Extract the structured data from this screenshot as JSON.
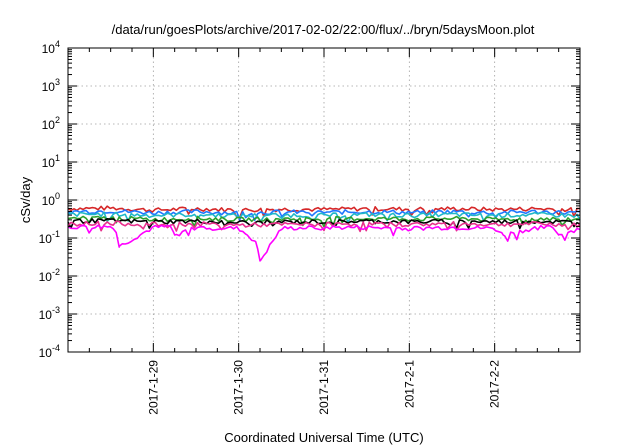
{
  "chart_data": {
    "type": "line",
    "title": "/data/run/goesPlots/archive/2017-02-02/22:00/flux/../bryn/5daysMoon.plot",
    "xlabel": "Coordinated Universal Time (UTC)",
    "ylabel": "cSv/day",
    "yscale": "log",
    "ylim": [
      0.0001,
      10000
    ],
    "yticks": [
      {
        "base": "10",
        "exp": "-4"
      },
      {
        "base": "10",
        "exp": "-3"
      },
      {
        "base": "10",
        "exp": "-2"
      },
      {
        "base": "10",
        "exp": "-1"
      },
      {
        "base": "10",
        "exp": "0"
      },
      {
        "base": "10",
        "exp": "1"
      },
      {
        "base": "10",
        "exp": "2"
      },
      {
        "base": "10",
        "exp": "3"
      },
      {
        "base": "10",
        "exp": "4"
      }
    ],
    "xlim": [
      28.0,
      34.0
    ],
    "xticks": [
      {
        "label": "2017-1-29",
        "pos": 29
      },
      {
        "label": "2017-1-30",
        "pos": 30
      },
      {
        "label": "2017-1-31",
        "pos": 31
      },
      {
        "label": "2017-2-1",
        "pos": 32
      },
      {
        "label": "2017-2-2",
        "pos": 33
      }
    ],
    "grid": true,
    "legend": "none",
    "series": [
      {
        "color": "#d62728",
        "x": [
          28.0,
          28.5,
          29.0,
          29.5,
          30.0,
          30.5,
          31.0,
          31.5,
          32.0,
          32.5,
          33.0,
          33.5,
          34.0
        ],
        "values": [
          0.6,
          0.62,
          0.55,
          0.6,
          0.55,
          0.58,
          0.57,
          0.6,
          0.58,
          0.6,
          0.57,
          0.6,
          0.55
        ]
      },
      {
        "color": "#1f77ff",
        "x": [
          28.0,
          28.5,
          29.0,
          29.5,
          30.0,
          30.5,
          31.0,
          31.5,
          32.0,
          32.5,
          33.0,
          33.5,
          34.0
        ],
        "values": [
          0.5,
          0.52,
          0.47,
          0.5,
          0.46,
          0.49,
          0.48,
          0.5,
          0.48,
          0.5,
          0.47,
          0.5,
          0.46
        ]
      },
      {
        "color": "#20b8c8",
        "x": [
          28.0,
          28.5,
          29.0,
          29.5,
          30.0,
          30.5,
          31.0,
          31.5,
          32.0,
          32.5,
          33.0,
          33.5,
          34.0
        ],
        "values": [
          0.42,
          0.43,
          0.4,
          0.42,
          0.39,
          0.41,
          0.4,
          0.42,
          0.4,
          0.42,
          0.4,
          0.42,
          0.39
        ]
      },
      {
        "color": "#2ca02c",
        "x": [
          28.0,
          28.5,
          29.0,
          29.5,
          30.0,
          30.5,
          31.0,
          31.5,
          32.0,
          32.5,
          33.0,
          33.5,
          34.0
        ],
        "values": [
          0.33,
          0.34,
          0.31,
          0.33,
          0.31,
          0.32,
          0.32,
          0.33,
          0.32,
          0.33,
          0.31,
          0.33,
          0.31
        ]
      },
      {
        "color": "#000000",
        "x": [
          28.0,
          28.5,
          29.0,
          29.5,
          30.0,
          30.5,
          31.0,
          31.5,
          32.0,
          32.5,
          33.0,
          33.5,
          34.0
        ],
        "values": [
          0.28,
          0.29,
          0.27,
          0.28,
          0.26,
          0.27,
          0.27,
          0.28,
          0.27,
          0.28,
          0.27,
          0.28,
          0.26
        ]
      },
      {
        "color": "#e8308c",
        "x": [
          28.0,
          28.5,
          29.0,
          29.5,
          30.0,
          30.5,
          31.0,
          31.5,
          32.0,
          32.5,
          33.0,
          33.5,
          34.0
        ],
        "values": [
          0.24,
          0.25,
          0.23,
          0.24,
          0.22,
          0.23,
          0.23,
          0.24,
          0.23,
          0.24,
          0.23,
          0.24,
          0.22
        ]
      },
      {
        "color": "#ff00ff",
        "x": [
          28.0,
          28.15,
          28.55,
          28.6,
          29.0,
          29.2,
          29.25,
          29.5,
          30.0,
          30.1,
          30.2,
          30.25,
          30.5,
          31.0,
          31.5,
          32.0,
          32.5,
          33.0,
          33.1,
          33.5,
          33.7,
          33.75,
          34.0
        ],
        "values": [
          0.19,
          0.2,
          0.2,
          0.06,
          0.19,
          0.2,
          0.12,
          0.19,
          0.18,
          0.12,
          0.08,
          0.025,
          0.18,
          0.19,
          0.19,
          0.18,
          0.19,
          0.18,
          0.12,
          0.19,
          0.19,
          0.12,
          0.18
        ]
      }
    ]
  }
}
